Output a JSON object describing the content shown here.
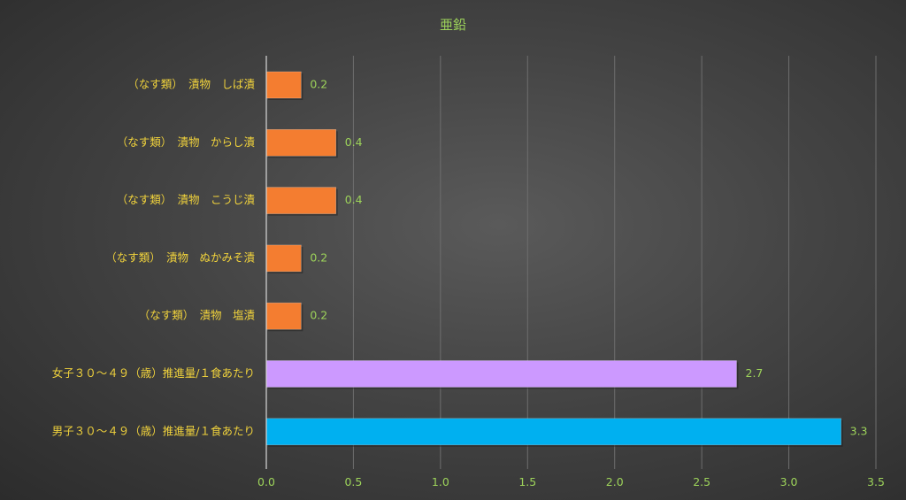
{
  "chart_data": {
    "type": "bar",
    "orientation": "horizontal",
    "title": "亜鉛",
    "categories": [
      "（なす類）　漬物　しば漬",
      "（なす類）　漬物　からし漬",
      "（なす類）　漬物　こうじ漬",
      "（なす類）　漬物　ぬかみそ漬",
      "（なす類）　漬物　塩漬",
      "女子３０～４９（歳）推進量/１食あたり",
      "男子３０～４９（歳）推進量/１食あたり"
    ],
    "values": [
      0.2,
      0.4,
      0.4,
      0.2,
      0.2,
      2.7,
      3.3
    ],
    "value_labels": [
      "0.2",
      "0.4",
      "0.4",
      "0.2",
      "0.2",
      "2.7",
      "3.3"
    ],
    "bar_colors": [
      "#f47d30",
      "#f47d30",
      "#f47d30",
      "#f47d30",
      "#f47d30",
      "#cc99ff",
      "#00b0f0"
    ],
    "xlim": [
      0,
      3.5
    ],
    "xticks": [
      "0.0",
      "0.5",
      "1.0",
      "1.5",
      "2.0",
      "2.5",
      "3.0",
      "3.5"
    ],
    "grid": true,
    "legend": "none"
  }
}
